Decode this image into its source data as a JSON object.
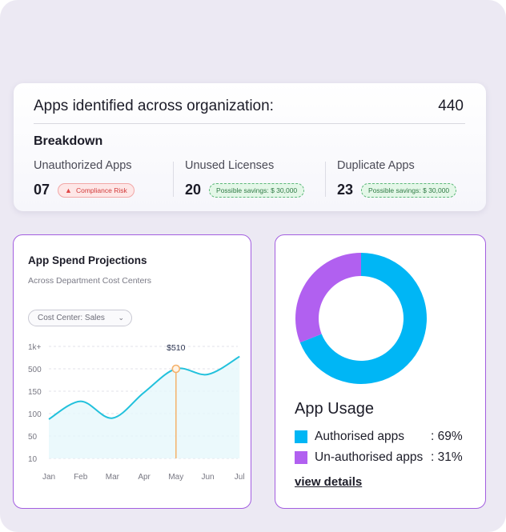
{
  "summary": {
    "title": "Apps identified across organization:",
    "total": "440",
    "breakdown_heading": "Breakdown",
    "metrics": [
      {
        "label": "Unauthorized Apps",
        "value": "07",
        "badge": "Compliance Risk",
        "badge_icon": "warning-icon"
      },
      {
        "label": "Unused Licenses",
        "value": "20",
        "badge": "Possible savings: $ 30,000"
      },
      {
        "label": "Duplicate Apps",
        "value": "23",
        "badge": "Possible savings: $ 30,000"
      }
    ]
  },
  "spend": {
    "title": "App Spend Projections",
    "subtitle": "Across Department Cost Centers",
    "filter": {
      "selected": "Cost Center: Sales",
      "icon": "chevron-down-icon"
    }
  },
  "chart_data": {
    "type": "line",
    "title": "App Spend Projections",
    "x_ticks": [
      "Jan",
      "Feb",
      "Mar",
      "Apr",
      "May",
      "Jun",
      "Jul"
    ],
    "y_ticks": [
      "1k+",
      "500",
      "150",
      "100",
      "50",
      "10"
    ],
    "y_scale": "categorical (non-linear labels)",
    "series": [
      {
        "values": [
          {
            "x": "Jan",
            "y_level": 1.75
          },
          {
            "x": "Feb",
            "y_level": 2.55
          },
          {
            "x": "Mar",
            "y_level": 1.8
          },
          {
            "x": "Apr",
            "y_level": 2.95
          },
          {
            "x": "May",
            "y_level": 4.0
          },
          {
            "x": "Jun",
            "y_level": 3.75
          },
          {
            "x": "Jul",
            "y_level": 4.55
          }
        ]
      }
    ],
    "highlight": {
      "x": "May",
      "label": "$510"
    },
    "grid": true,
    "colors": {
      "line": "#22c1dc",
      "fill": "#e6f8fb",
      "marker": "#f5b26b"
    }
  },
  "usage": {
    "title": "App Usage",
    "link": "view details",
    "items": [
      {
        "label": "Authorised apps",
        "value": ": 69%",
        "percent": 69,
        "color": "#00b6f5"
      },
      {
        "label": "Un-authorised apps",
        "value": ": 31%",
        "percent": 31,
        "color": "#b160f0"
      }
    ]
  }
}
